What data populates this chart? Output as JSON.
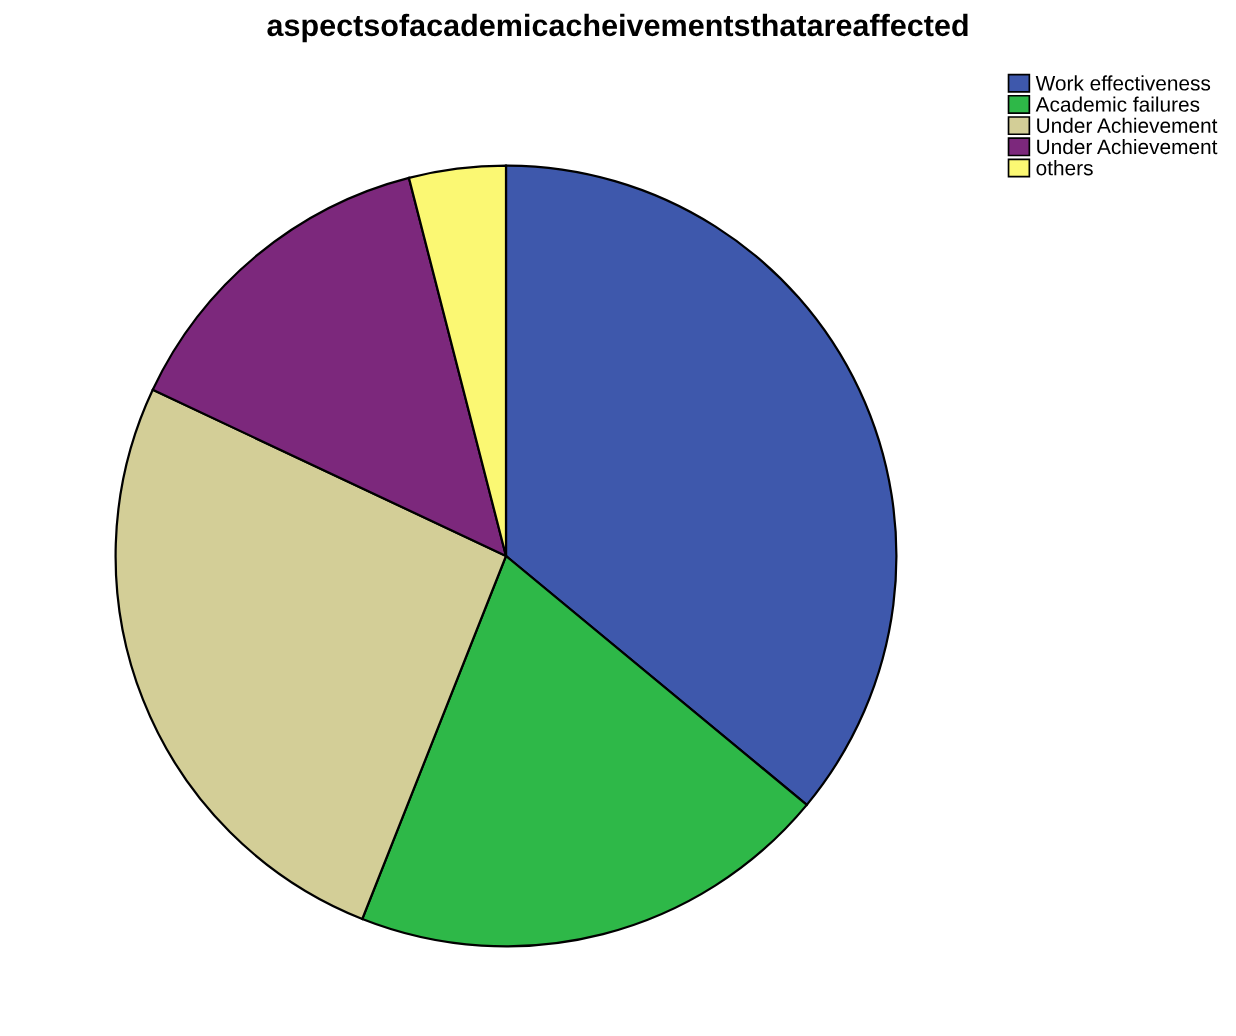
{
  "chart_data": {
    "type": "pie",
    "title": "aspectsofacademicacheivementsthatareaffected",
    "categories": [
      "Work effectiveness",
      "Academic failures",
      "Under Achievement",
      "Under Achievement",
      "others"
    ],
    "values": [
      36,
      20,
      26,
      14,
      4
    ],
    "colors": [
      "#3e58ac",
      "#2eb848",
      "#d3ce97",
      "#7c287c",
      "#fbf873"
    ],
    "legend": "top right"
  }
}
